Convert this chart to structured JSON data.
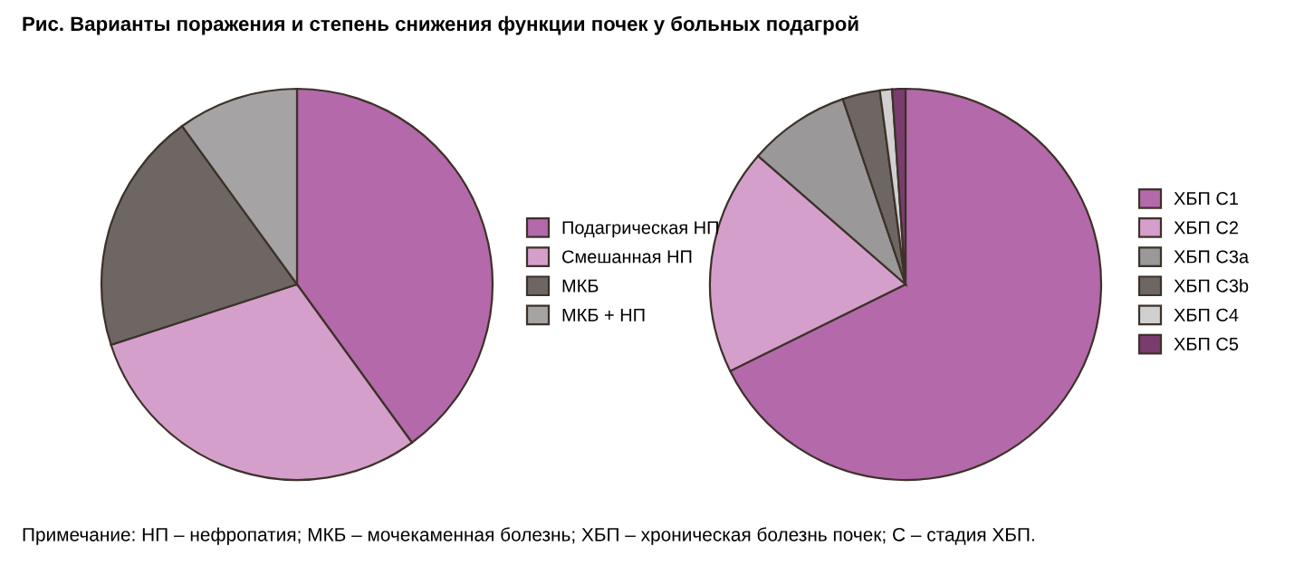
{
  "chart_data": [
    {
      "type": "pie",
      "title": "Рис. Варианты поражения и степень снижения функции почек у больных подагрой",
      "annotations": [
        "Примечание: НП – нефропатия; МКБ – мочекаменная болезнь; ХБП – хроническая болезнь почек; С – стадия ХБП."
      ],
      "categories": [
        "Подагрическая НП",
        "Смешанная НП",
        "МКБ",
        "МКБ + НП"
      ],
      "values": [
        40,
        30,
        20,
        10
      ],
      "colors": [
        "#b469aa",
        "#d59fcb",
        "#6e6663",
        "#a5a3a3"
      ],
      "legend": "right"
    },
    {
      "type": "pie",
      "categories": [
        "ХБП С1",
        "ХБП С2",
        "ХБП С3a",
        "ХБП С3b",
        "ХБП С4",
        "ХБП С5"
      ],
      "values": [
        67.7,
        18.7,
        8.4,
        3.1,
        1.0,
        1.1
      ],
      "colors": [
        "#b469aa",
        "#d59fcb",
        "#9a9898",
        "#6e6663",
        "#d0d0d0",
        "#7a3c6e"
      ],
      "legend": "right"
    }
  ]
}
